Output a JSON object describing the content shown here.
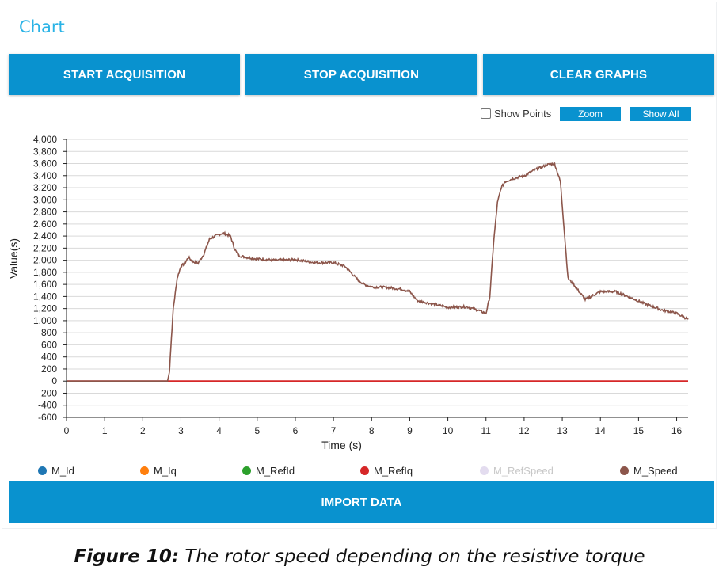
{
  "panel_title": "Chart",
  "buttons": {
    "start": "START ACQUISITION",
    "stop": "STOP ACQUISITION",
    "clear": "CLEAR GRAPHS",
    "import": "IMPORT DATA"
  },
  "controls": {
    "show_points_label": "Show Points",
    "show_points_checked": false,
    "zoom_label": "Zoom",
    "show_all_label": "Show All"
  },
  "caption": {
    "label": "Figure 10:",
    "text": " The rotor speed depending on the resistive torque"
  },
  "colors": {
    "accent": "#0992cf",
    "title": "#2ab3e6",
    "speed": "#8c564b",
    "refiq": "#d62728"
  },
  "chart_data": {
    "type": "line",
    "title": "",
    "xlabel": "Time (s)",
    "ylabel": "Value(s)",
    "xlim": [
      0,
      16.3
    ],
    "ylim": [
      -600,
      4000
    ],
    "x_ticks": [
      0,
      1,
      2,
      3,
      4,
      5,
      6,
      7,
      8,
      9,
      10,
      11,
      12,
      13,
      14,
      15,
      16
    ],
    "y_ticks": [
      -600,
      -400,
      -200,
      0,
      200,
      400,
      600,
      800,
      1000,
      1200,
      1400,
      1600,
      1800,
      2000,
      2200,
      2400,
      2600,
      2800,
      3000,
      3200,
      3400,
      3600,
      3800,
      4000
    ],
    "y_tick_labels": [
      "-600",
      "-400",
      "-200",
      "0",
      "200",
      "400",
      "600",
      "800",
      "1,000",
      "1,200",
      "1,400",
      "1,600",
      "1,800",
      "2,000",
      "2,200",
      "2,400",
      "2,600",
      "2,800",
      "3,000",
      "3,200",
      "3,400",
      "3,600",
      "3,800",
      "4,000"
    ],
    "grid": true,
    "legend": [
      {
        "name": "M_Id",
        "color": "#1f77b4",
        "hidden": false
      },
      {
        "name": "M_Iq",
        "color": "#ff7f0e",
        "hidden": false
      },
      {
        "name": "M_RefId",
        "color": "#2ca02c",
        "hidden": false
      },
      {
        "name": "M_RefIq",
        "color": "#d62728",
        "hidden": false
      },
      {
        "name": "M_RefSpeed",
        "color": "#e3dcef",
        "hidden": true
      },
      {
        "name": "M_Speed",
        "color": "#8c564b",
        "hidden": false
      }
    ],
    "series": [
      {
        "name": "M_RefIq",
        "color": "#d62728",
        "x": [
          0,
          16.3
        ],
        "y": [
          0,
          0
        ]
      },
      {
        "name": "M_Speed",
        "color": "#8c564b",
        "x": [
          0,
          2.65,
          2.7,
          2.72,
          2.8,
          2.9,
          3.0,
          3.1,
          3.2,
          3.3,
          3.45,
          3.6,
          3.75,
          3.9,
          4.1,
          4.3,
          4.4,
          4.5,
          4.7,
          5.0,
          5.5,
          6.0,
          6.5,
          7.0,
          7.3,
          7.6,
          7.8,
          8.0,
          8.4,
          8.8,
          9.0,
          9.2,
          9.6,
          10.0,
          10.5,
          10.8,
          11.0,
          11.1,
          11.2,
          11.3,
          11.4,
          11.5,
          11.7,
          12.0,
          12.3,
          12.6,
          12.8,
          12.95,
          13.05,
          13.15,
          13.3,
          13.6,
          14.0,
          14.4,
          14.8,
          15.2,
          15.6,
          16.0,
          16.3
        ],
        "y": [
          0,
          0,
          150,
          400,
          1200,
          1700,
          1900,
          1950,
          2050,
          1980,
          1950,
          2100,
          2350,
          2400,
          2450,
          2400,
          2200,
          2080,
          2050,
          2020,
          2000,
          2010,
          1960,
          1960,
          1900,
          1700,
          1600,
          1560,
          1550,
          1520,
          1480,
          1330,
          1280,
          1220,
          1230,
          1170,
          1120,
          1400,
          2300,
          2950,
          3200,
          3300,
          3350,
          3400,
          3500,
          3580,
          3600,
          3300,
          2500,
          1700,
          1600,
          1350,
          1480,
          1480,
          1380,
          1270,
          1180,
          1120,
          1020
        ]
      }
    ]
  }
}
